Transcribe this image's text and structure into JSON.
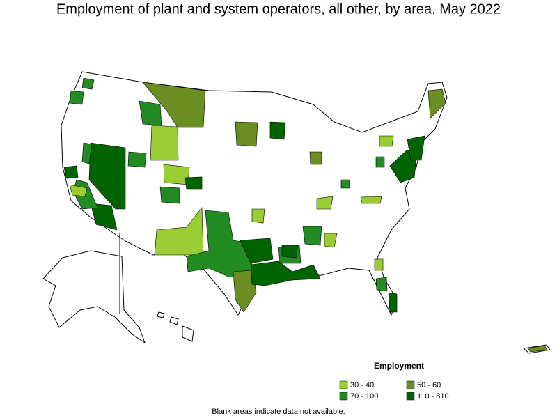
{
  "title": "Employment of plant and system operators, all other, by area, May 2022",
  "legend": {
    "title": "Employment",
    "items": [
      {
        "label": "30 - 40",
        "color": "#9acd32"
      },
      {
        "label": "50 - 60",
        "color": "#6b8e23"
      },
      {
        "label": "70 - 100",
        "color": "#228b22"
      },
      {
        "label": "110 - 810",
        "color": "#006400"
      }
    ]
  },
  "footnote": "Blank areas indicate data not available."
}
